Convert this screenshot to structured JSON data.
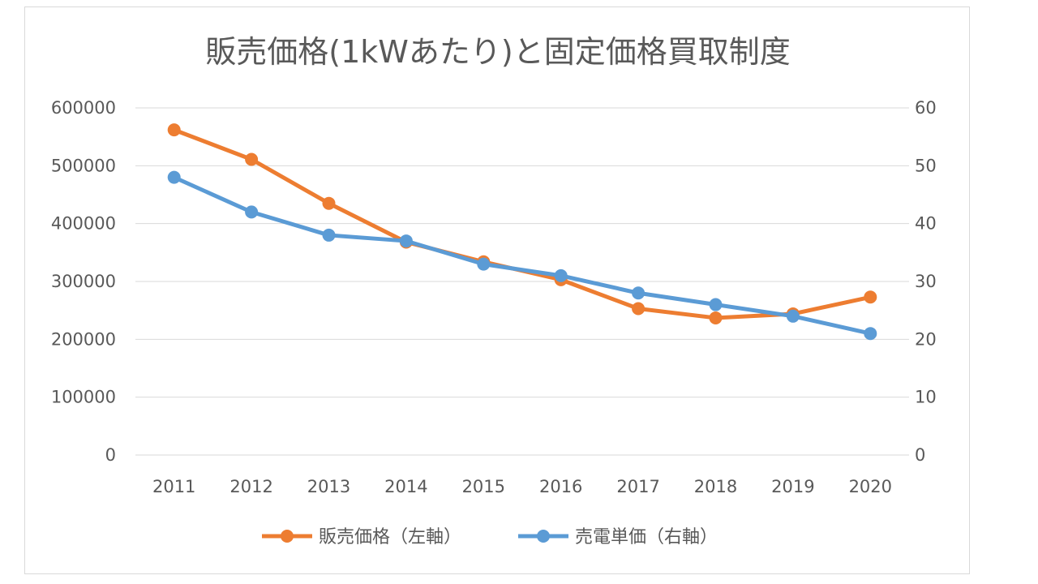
{
  "chart_data": {
    "type": "line",
    "title": "販売価格(1kWあたり)と固定価格買取制度",
    "categories": [
      "2011",
      "2012",
      "2013",
      "2014",
      "2015",
      "2016",
      "2017",
      "2018",
      "2019",
      "2020"
    ],
    "series": [
      {
        "name": "販売価格（左軸）",
        "axis": "left",
        "color": "#ed7d31",
        "values": [
          562000,
          511000,
          435000,
          368000,
          334000,
          303000,
          253000,
          237000,
          244000,
          273000
        ]
      },
      {
        "name": "売電単価（右軸）",
        "axis": "right",
        "color": "#5b9bd5",
        "values": [
          48,
          42,
          38,
          37,
          33,
          31,
          28,
          26,
          24,
          21
        ]
      }
    ],
    "y_left": {
      "ylim": [
        0,
        600000
      ],
      "ticks": [
        "0",
        "100000",
        "200000",
        "300000",
        "400000",
        "500000",
        "600000"
      ]
    },
    "y_right": {
      "ylim": [
        0,
        60
      ],
      "ticks": [
        "0",
        "10",
        "20",
        "30",
        "40",
        "50",
        "60"
      ]
    },
    "grid": true,
    "legend": "bottom"
  }
}
